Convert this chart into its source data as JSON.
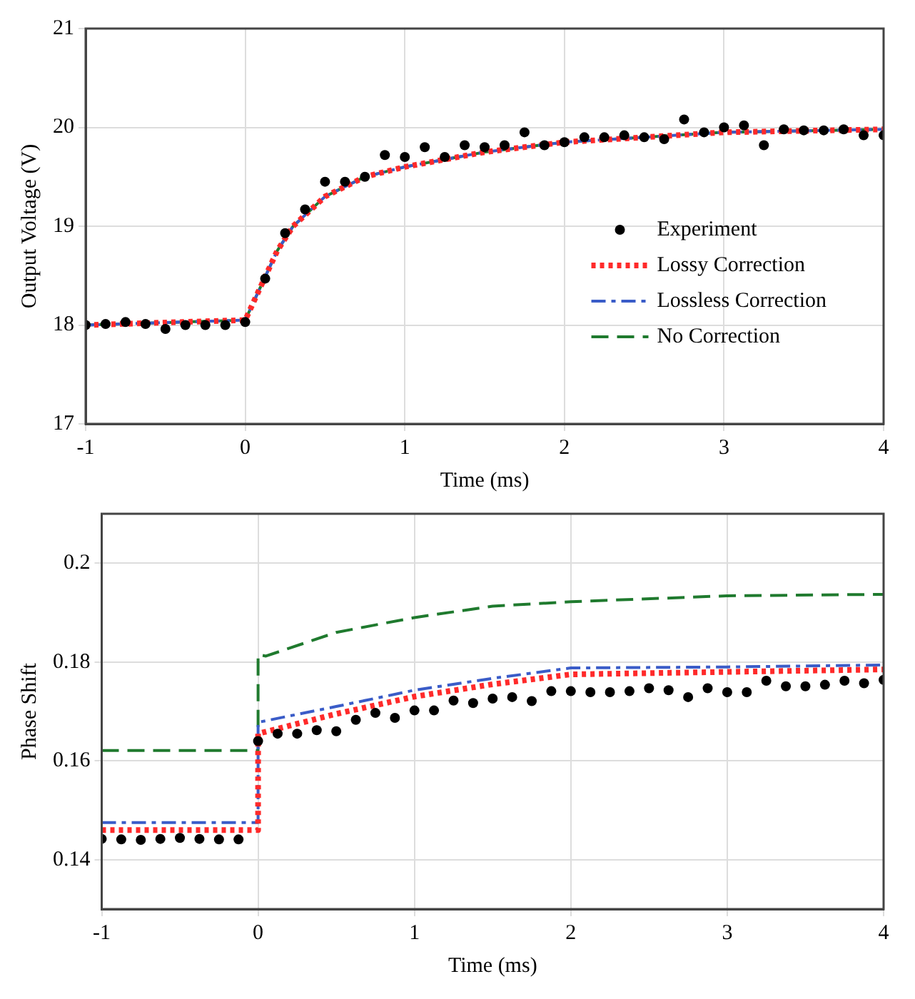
{
  "chart_data": [
    {
      "type": "line",
      "xlabel": "Time (ms)",
      "ylabel": "Output Voltage (V)",
      "xlim": [
        -1,
        4
      ],
      "xticks": [
        -1,
        0,
        1,
        2,
        3,
        4
      ],
      "ylim": [
        17,
        21
      ],
      "yticks": [
        17,
        18,
        19,
        20,
        21
      ],
      "grid": true,
      "legend": "right",
      "series": [
        {
          "name": "Experiment",
          "type": "scatter",
          "marker": "circle",
          "color": "#000000",
          "x": [
            -1,
            -0.875,
            -0.75,
            -0.625,
            -0.5,
            -0.375,
            -0.25,
            -0.125,
            0,
            0.125,
            0.25,
            0.375,
            0.5,
            0.625,
            0.75,
            0.875,
            1,
            1.125,
            1.25,
            1.375,
            1.5,
            1.625,
            1.75,
            1.875,
            2,
            2.125,
            2.25,
            2.375,
            2.5,
            2.625,
            2.75,
            2.875,
            3,
            3.125,
            3.25,
            3.375,
            3.5,
            3.625,
            3.75,
            3.875,
            4
          ],
          "values": [
            18,
            18.01,
            18.03,
            18.01,
            17.96,
            18,
            18,
            18,
            18.03,
            18.47,
            18.93,
            19.17,
            19.45,
            19.45,
            19.5,
            19.72,
            19.7,
            19.8,
            19.7,
            19.82,
            19.8,
            19.82,
            19.95,
            19.82,
            19.85,
            19.9,
            19.9,
            19.92,
            19.9,
            19.88,
            20.08,
            19.95,
            20,
            20.02,
            19.82,
            19.98,
            19.97,
            19.97,
            19.98,
            19.92,
            19.92
          ]
        },
        {
          "name": "Lossy Correction",
          "line_style": "dotted",
          "color": "#ff2a2a",
          "x": [
            -1,
            0,
            0.1,
            0.2,
            0.3,
            0.5,
            0.75,
            1,
            1.5,
            2,
            3,
            4
          ],
          "values": [
            18,
            18.05,
            18.4,
            18.75,
            19,
            19.3,
            19.5,
            19.6,
            19.75,
            19.85,
            19.95,
            19.98
          ]
        },
        {
          "name": "Lossless Correction",
          "line_style": "dashdot",
          "color": "#3a5cc8",
          "x": [
            -1,
            0,
            0.1,
            0.2,
            0.3,
            0.5,
            0.75,
            1,
            1.5,
            2,
            3,
            4
          ],
          "values": [
            18,
            18.05,
            18.4,
            18.75,
            19,
            19.3,
            19.5,
            19.6,
            19.75,
            19.85,
            19.95,
            19.98
          ]
        },
        {
          "name": "No Correction",
          "line_style": "dashed",
          "color": "#1f7a2e",
          "x": [
            -1,
            0,
            0.1,
            0.2,
            0.3,
            0.5,
            0.75,
            1,
            1.5,
            2,
            3,
            4
          ],
          "values": [
            18,
            18.05,
            18.4,
            18.75,
            19,
            19.3,
            19.5,
            19.6,
            19.75,
            19.85,
            19.95,
            19.98
          ]
        }
      ]
    },
    {
      "type": "line",
      "xlabel": "Time (ms)",
      "ylabel": "Phase Shift",
      "xlim": [
        -1,
        4
      ],
      "xticks": [
        -1,
        0,
        1,
        2,
        3,
        4
      ],
      "ylim": [
        0.13,
        0.21
      ],
      "yticks": [
        0.14,
        0.16,
        0.18,
        0.2
      ],
      "grid": true,
      "legend": false,
      "series": [
        {
          "type": "scatter",
          "marker": "circle",
          "color": "#000000",
          "x": [
            -1,
            -0.875,
            -0.75,
            -0.625,
            -0.5,
            -0.375,
            -0.25,
            -0.125,
            0,
            0.125,
            0.25,
            0.375,
            0.5,
            0.625,
            0.75,
            0.875,
            1,
            1.125,
            1.25,
            1.375,
            1.5,
            1.625,
            1.75,
            1.875,
            2,
            2.125,
            2.25,
            2.375,
            2.5,
            2.625,
            2.75,
            2.875,
            3,
            3.125,
            3.25,
            3.375,
            3.5,
            3.625,
            3.75,
            3.875,
            4
          ],
          "values": [
            0.1442,
            0.1441,
            0.144,
            0.1442,
            0.1444,
            0.1442,
            0.1441,
            0.1441,
            0.164,
            0.1655,
            0.1655,
            0.1662,
            0.166,
            0.1683,
            0.1697,
            0.1687,
            0.1702,
            0.1702,
            0.1722,
            0.1717,
            0.1726,
            0.1729,
            0.1721,
            0.1741,
            0.1741,
            0.1739,
            0.1739,
            0.1741,
            0.1747,
            0.1743,
            0.1729,
            0.1747,
            0.1739,
            0.1739,
            0.1762,
            0.1751,
            0.1751,
            0.1754,
            0.1762,
            0.1757,
            0.1764
          ]
        },
        {
          "line_style": "dotted",
          "color": "#ff2a2a",
          "x": [
            -1,
            0,
            0,
            0.5,
            1,
            1.5,
            2,
            3,
            4
          ],
          "values": [
            0.146,
            0.146,
            0.1655,
            0.1695,
            0.173,
            0.1755,
            0.1775,
            0.178,
            0.1785
          ]
        },
        {
          "line_style": "dashdot",
          "color": "#3a5cc8",
          "x": [
            -1,
            0,
            0,
            0.5,
            1,
            1.5,
            2,
            3,
            4
          ],
          "values": [
            0.1475,
            0.1475,
            0.1678,
            0.171,
            0.1743,
            0.1767,
            0.1788,
            0.179,
            0.1794
          ]
        },
        {
          "line_style": "dashed",
          "color": "#1f7a2e",
          "x": [
            -1,
            0,
            0,
            0.05,
            0.5,
            1,
            1.5,
            2,
            3,
            4
          ],
          "values": [
            0.1621,
            0.1621,
            0.1815,
            0.1812,
            0.186,
            0.189,
            0.1913,
            0.1922,
            0.1934,
            0.1937
          ]
        }
      ]
    }
  ]
}
